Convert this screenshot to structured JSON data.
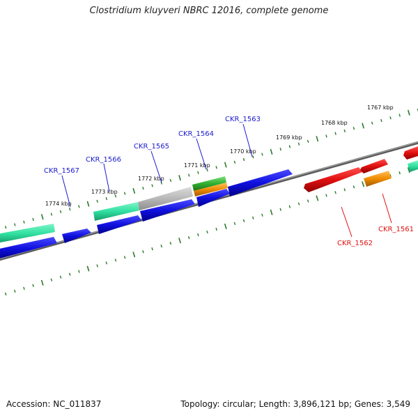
{
  "title": "Clostridium kluyveri NBRC 12016, complete genome",
  "footer": {
    "accession": "Accession: NC_011837",
    "summary": "Topology: circular; Length: 3,896,121 bp; Genes: 3,549"
  },
  "scale_labels": [
    "1774 kbp",
    "1773 kbp",
    "1772 kbp",
    "1771 kbp",
    "1770 kbp",
    "1769 kbp",
    "1768 kbp",
    "1767 kbp"
  ],
  "gene_labels_forward": [
    "CKR_1567",
    "CKR_1566",
    "CKR_1565",
    "CKR_1564",
    "CKR_1563"
  ],
  "gene_labels_reverse": [
    "CKR_1562",
    "CKR_1561"
  ],
  "colors": {
    "backbone": "#808080",
    "forward_gene": "#1010e0",
    "reverse_gene": "#e01010",
    "rna_green": "#30e0a0",
    "hypothetical": "#b8b8b8",
    "orange": "#f08c00",
    "green": "#30b030",
    "tick": "#2a7a2a",
    "label_blue": "#1a1acd",
    "label_red": "#e01010"
  }
}
